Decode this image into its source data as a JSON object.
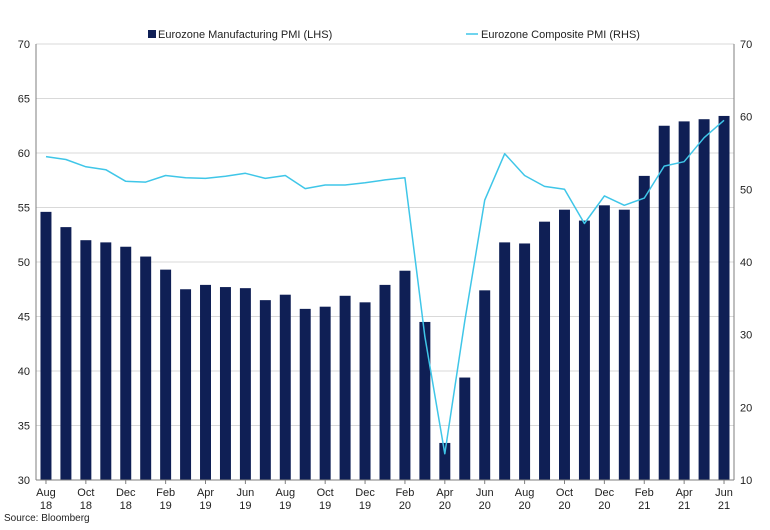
{
  "chart_data": {
    "type": "bar",
    "categories": [
      "Aug 18",
      "Sep 18",
      "Oct 18",
      "Nov 18",
      "Dec 18",
      "Jan 19",
      "Feb 19",
      "Mar 19",
      "Apr 19",
      "May 19",
      "Jun 19",
      "Jul 19",
      "Aug 19",
      "Sep 19",
      "Oct 19",
      "Nov 19",
      "Dec 19",
      "Jan 20",
      "Feb 20",
      "Mar 20",
      "Apr 20",
      "May 20",
      "Jun 20",
      "Jul 20",
      "Aug 20",
      "Sep 20",
      "Oct 20",
      "Nov 20",
      "Dec 20",
      "Jan 21",
      "Feb 21",
      "Mar 21",
      "Apr 21",
      "May 21",
      "Jun 21"
    ],
    "x_tick_labels": [
      {
        "month": "Aug",
        "year": "18"
      },
      {
        "month": "Oct",
        "year": "18"
      },
      {
        "month": "Dec",
        "year": "18"
      },
      {
        "month": "Feb",
        "year": "19"
      },
      {
        "month": "Apr",
        "year": "19"
      },
      {
        "month": "Jun",
        "year": "19"
      },
      {
        "month": "Aug",
        "year": "19"
      },
      {
        "month": "Oct",
        "year": "19"
      },
      {
        "month": "Dec",
        "year": "19"
      },
      {
        "month": "Feb",
        "year": "20"
      },
      {
        "month": "Apr",
        "year": "20"
      },
      {
        "month": "Jun",
        "year": "20"
      },
      {
        "month": "Aug",
        "year": "20"
      },
      {
        "month": "Oct",
        "year": "20"
      },
      {
        "month": "Dec",
        "year": "20"
      },
      {
        "month": "Feb",
        "year": "21"
      },
      {
        "month": "Apr",
        "year": "21"
      },
      {
        "month": "Jun",
        "year": "21"
      }
    ],
    "series": [
      {
        "name": "Eurozone Manufacturing PMI (LHS)",
        "type": "bar",
        "axis": "left",
        "color": "#0f1f55",
        "values": [
          54.6,
          53.2,
          52.0,
          51.8,
          51.4,
          50.5,
          49.3,
          47.5,
          47.9,
          47.7,
          47.6,
          46.5,
          47.0,
          45.7,
          45.9,
          46.9,
          46.3,
          47.9,
          49.2,
          44.5,
          33.4,
          39.4,
          47.4,
          51.8,
          51.7,
          53.7,
          54.8,
          53.8,
          55.2,
          54.8,
          57.9,
          62.5,
          62.9,
          63.1,
          63.4
        ]
      },
      {
        "name": "Eurozone Composite PMI (RHS)",
        "type": "line",
        "axis": "right",
        "color": "#3fc6e8",
        "values": [
          54.5,
          54.1,
          53.1,
          52.7,
          51.1,
          51.0,
          51.9,
          51.6,
          51.5,
          51.8,
          52.2,
          51.5,
          51.9,
          50.1,
          50.6,
          50.6,
          50.9,
          51.3,
          51.6,
          29.7,
          13.6,
          31.9,
          48.5,
          54.9,
          51.9,
          50.4,
          50.0,
          45.3,
          49.1,
          47.8,
          48.8,
          53.2,
          53.8,
          57.1,
          59.5
        ]
      }
    ],
    "ylim_left": [
      30,
      70
    ],
    "ylim_right": [
      10,
      70
    ],
    "yticks_left": [
      "30",
      "35",
      "40",
      "45",
      "50",
      "55",
      "60",
      "65",
      "70"
    ],
    "yticks_right": [
      "10",
      "20",
      "30",
      "40",
      "50",
      "60",
      "70"
    ],
    "grid": true,
    "legend_position": "top-center",
    "source": "Source: Bloomberg"
  }
}
